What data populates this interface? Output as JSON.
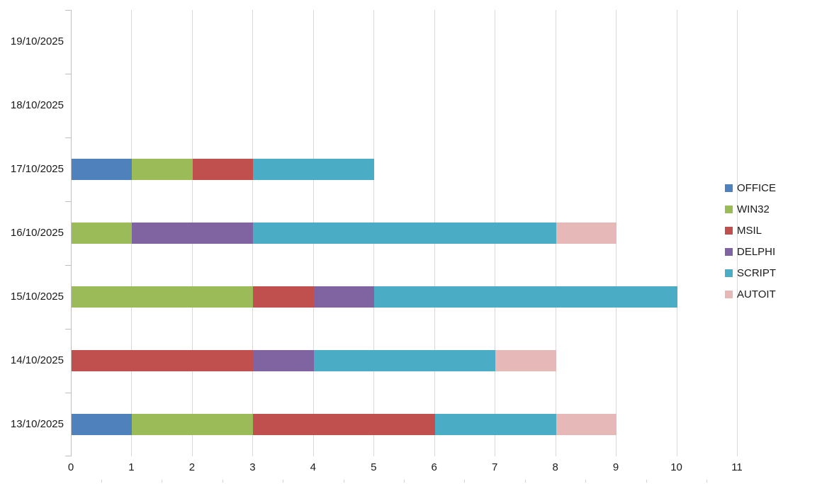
{
  "chart_data": {
    "type": "bar",
    "orientation": "horizontal-stacked",
    "title": "",
    "xlabel": "",
    "ylabel": "",
    "xlim": [
      0,
      11
    ],
    "grid": true,
    "legend_position": "right",
    "categories": [
      "19/10/2025",
      "18/10/2025",
      "17/10/2025",
      "16/10/2025",
      "15/10/2025",
      "14/10/2025",
      "13/10/2025"
    ],
    "x_ticks": [
      "0",
      "1",
      "2",
      "3",
      "4",
      "5",
      "6",
      "7",
      "8",
      "9",
      "10",
      "11"
    ],
    "series": [
      {
        "name": "OFFICE",
        "color": "#4F81BD",
        "values": [
          0,
          0,
          1,
          0,
          0,
          0,
          1
        ]
      },
      {
        "name": "WIN32",
        "color": "#9BBB59",
        "values": [
          0,
          0,
          1,
          1,
          3,
          0,
          2
        ]
      },
      {
        "name": "MSIL",
        "color": "#C0504D",
        "values": [
          0,
          0,
          1,
          0,
          1,
          3,
          3
        ]
      },
      {
        "name": "DELPHI",
        "color": "#8064A2",
        "values": [
          0,
          0,
          0,
          2,
          1,
          1,
          0
        ]
      },
      {
        "name": "SCRIPT",
        "color": "#4BACC6",
        "values": [
          0,
          0,
          2,
          5,
          5,
          3,
          2
        ]
      },
      {
        "name": "AUTOIT",
        "color": "#E6B9B8",
        "values": [
          0,
          0,
          0,
          1,
          0,
          1,
          1
        ]
      }
    ],
    "totals_by_category": [
      0,
      0,
      5,
      9,
      10,
      8,
      9
    ]
  }
}
